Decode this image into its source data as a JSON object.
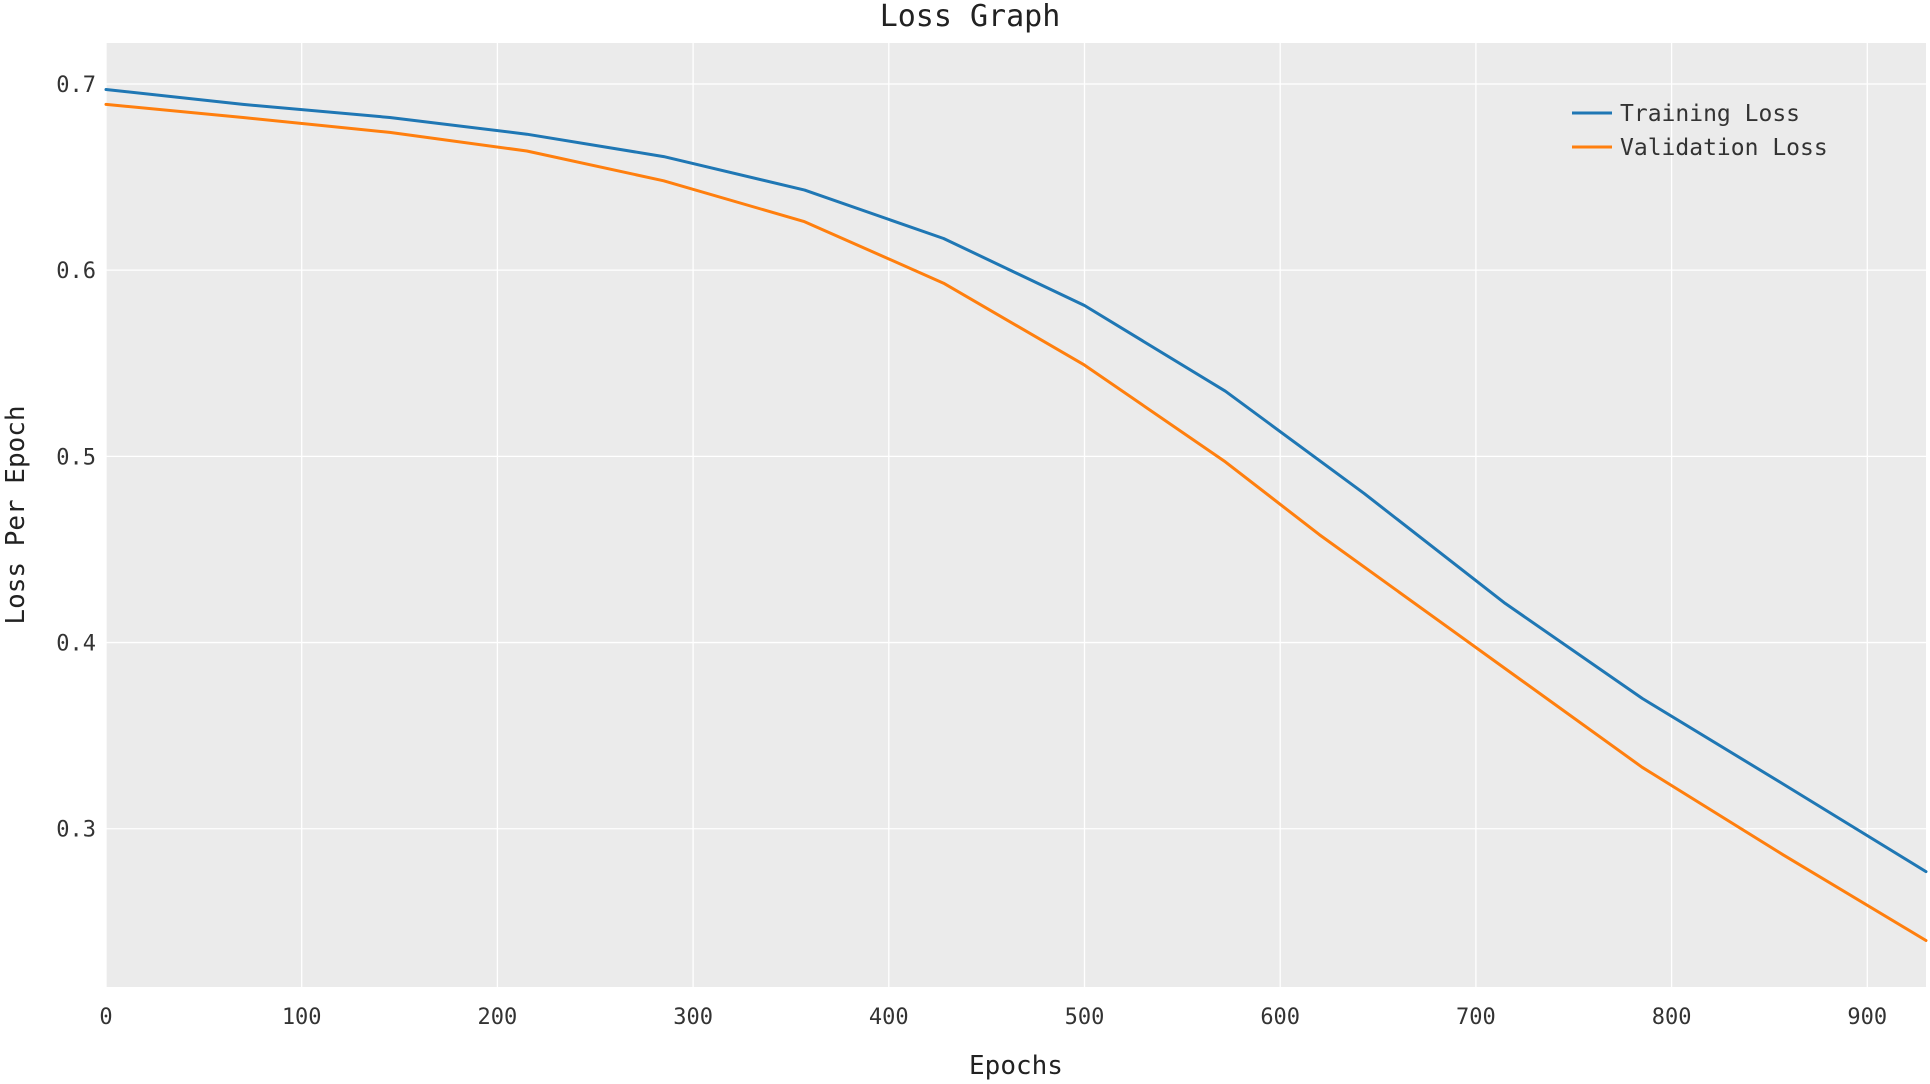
{
  "chart_data": {
    "type": "line",
    "title": "Loss Graph",
    "xlabel": "Epochs",
    "ylabel": "Loss Per Epoch",
    "xlim": [
      0,
      930
    ],
    "ylim": [
      0.215,
      0.722
    ],
    "xticks": [
      0,
      100,
      200,
      300,
      400,
      500,
      600,
      700,
      800,
      900
    ],
    "yticks": [
      0.3,
      0.4,
      0.5,
      0.6,
      0.7
    ],
    "ytick_labels": [
      "0.3",
      "0.4",
      "0.5",
      "0.6",
      "0.7"
    ],
    "grid": true,
    "legend_position": "top-right",
    "background_color": "#ebebeb",
    "grid_color": "#ffffff",
    "series": [
      {
        "name": "Training Loss",
        "color": "#1f77b4",
        "x": [
          0,
          70,
          145,
          215,
          285,
          357,
          428,
          500,
          572,
          643,
          715,
          785,
          857,
          930
        ],
        "y": [
          0.697,
          0.689,
          0.682,
          0.673,
          0.661,
          0.643,
          0.617,
          0.581,
          0.535,
          0.48,
          0.421,
          0.37,
          0.324,
          0.277
        ]
      },
      {
        "name": "Validation Loss",
        "color": "#ff7f0e",
        "x": [
          0,
          70,
          145,
          215,
          285,
          357,
          428,
          500,
          572,
          620,
          715,
          785,
          857,
          930
        ],
        "y": [
          0.689,
          0.682,
          0.674,
          0.664,
          0.648,
          0.626,
          0.593,
          0.549,
          0.497,
          0.458,
          0.386,
          0.333,
          0.286,
          0.24
        ]
      }
    ]
  }
}
